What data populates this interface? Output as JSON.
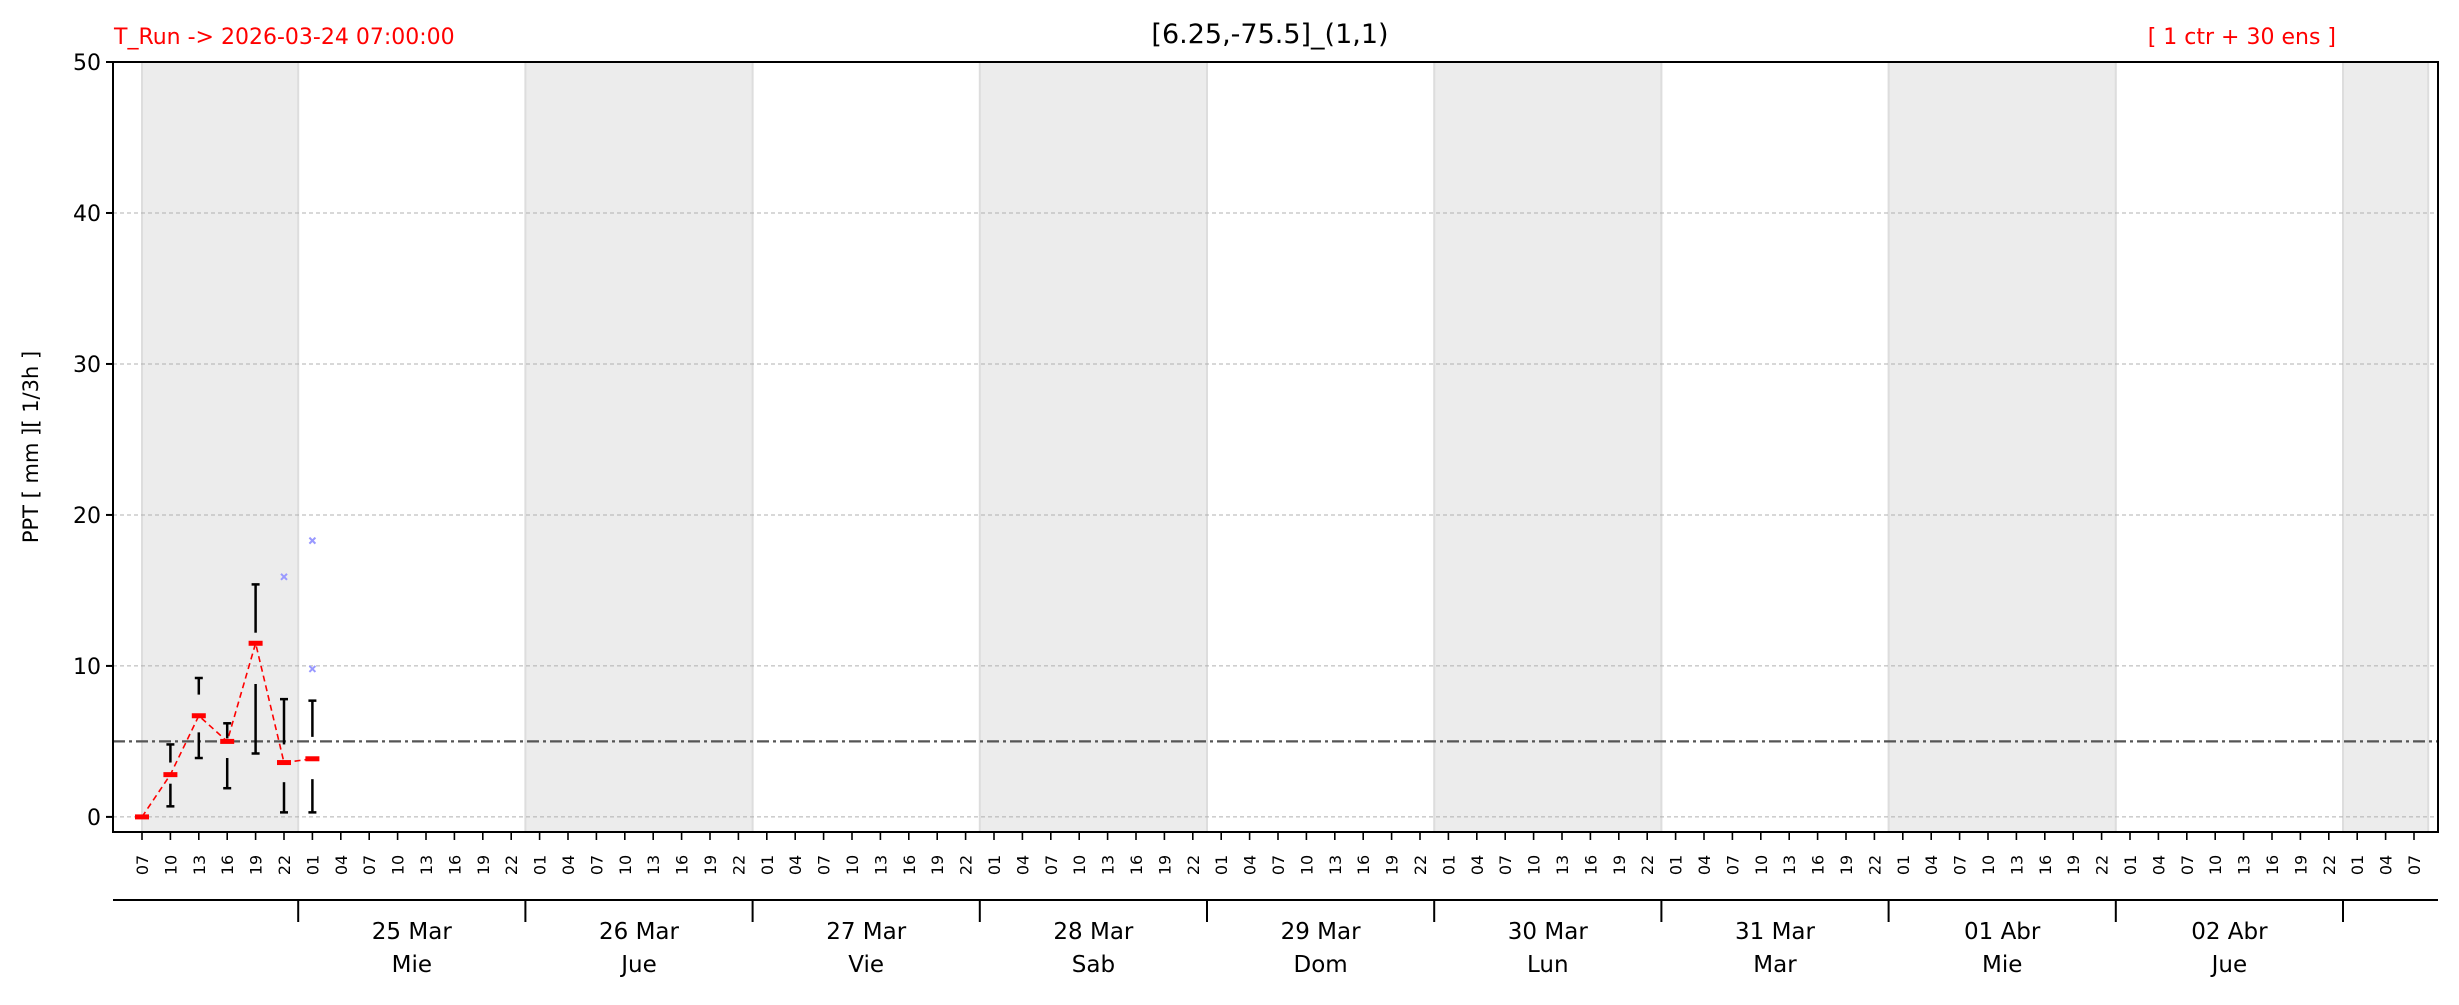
{
  "header": {
    "run_label": "T_Run -> 2026-03-24  07:00:00",
    "title": "[6.25,-75.5]_(1,1)",
    "ensemble_label": "[ 1 ctr + 30 ens ]"
  },
  "colors": {
    "header_red": "#ff0000",
    "median": "#ff0000",
    "whisker": "#000000",
    "outlier": "#9999ff",
    "threshold": "#555555",
    "day_shade": "#ececec",
    "grid": "#b0b0b0"
  },
  "chart_data": {
    "type": "box",
    "title": "[6.25,-75.5]_(1,1)",
    "ylabel": "PPT  [ mm ][ 1/3h ]",
    "ylim": [
      -1,
      50
    ],
    "yticks": [
      0,
      10,
      20,
      30,
      40,
      50
    ],
    "grid": "horizontal dashed",
    "threshold": 5,
    "x_tick_labels": [
      "07",
      "10",
      "13",
      "16",
      "19",
      "22",
      "01",
      "04",
      "07",
      "10",
      "13",
      "16",
      "19",
      "22",
      "01",
      "04",
      "07",
      "10",
      "13",
      "16",
      "19",
      "22",
      "01",
      "04",
      "07",
      "10",
      "13",
      "16",
      "19",
      "22",
      "01",
      "04",
      "07",
      "10",
      "13",
      "16",
      "19",
      "22",
      "01",
      "04",
      "07",
      "10",
      "13",
      "16",
      "19",
      "22",
      "01",
      "04",
      "07",
      "10",
      "13",
      "16",
      "19",
      "22",
      "01",
      "04",
      "07",
      "10",
      "13",
      "16",
      "19",
      "22",
      "01",
      "04",
      "07",
      "10",
      "13",
      "16",
      "19",
      "22",
      "01",
      "04",
      "07",
      "10",
      "13",
      "16",
      "19",
      "22",
      "01",
      "04",
      "07"
    ],
    "days": [
      {
        "date": "25 Mar",
        "weekday": "Mie"
      },
      {
        "date": "26 Mar",
        "weekday": "Jue"
      },
      {
        "date": "27 Mar",
        "weekday": "Vie"
      },
      {
        "date": "28 Mar",
        "weekday": "Sab"
      },
      {
        "date": "29 Mar",
        "weekday": "Dom"
      },
      {
        "date": "30 Mar",
        "weekday": "Lun"
      },
      {
        "date": "31 Mar",
        "weekday": "Mar"
      },
      {
        "date": "01 Abr",
        "weekday": "Mie"
      },
      {
        "date": "02 Abr",
        "weekday": "Jue"
      }
    ],
    "boxes": [
      {
        "time": "2026-03-24 07:00",
        "min": 0,
        "q1": 0,
        "median": 0,
        "q3": 0,
        "max": 0,
        "outliers": []
      },
      {
        "time": "2026-03-24 10:00",
        "min": 0.7,
        "q1": 2.2,
        "median": 2.8,
        "q3": 3.6,
        "max": 4.8,
        "outliers": []
      },
      {
        "time": "2026-03-24 13:00",
        "min": 3.9,
        "q1": 5.6,
        "median": 6.7,
        "q3": 8.1,
        "max": 9.2,
        "outliers": []
      },
      {
        "time": "2026-03-24 16:00",
        "min": 1.9,
        "q1": 3.9,
        "median": 5.0,
        "q3": 5.2,
        "max": 6.2,
        "outliers": []
      },
      {
        "time": "2026-03-24 19:00",
        "min": 4.2,
        "q1": 8.8,
        "median": 11.5,
        "q3": 12.2,
        "max": 15.4,
        "outliers": []
      },
      {
        "time": "2026-03-24 22:00",
        "min": 0.3,
        "q1": 2.3,
        "median": 3.6,
        "q3": 4.8,
        "max": 7.8,
        "outliers": [
          15.9
        ]
      },
      {
        "time": "2026-03-25 01:00",
        "min": 0.3,
        "q1": 2.5,
        "median": 3.85,
        "q3": 5.3,
        "max": 7.7,
        "outliers": [
          18.3,
          9.8
        ]
      }
    ]
  }
}
